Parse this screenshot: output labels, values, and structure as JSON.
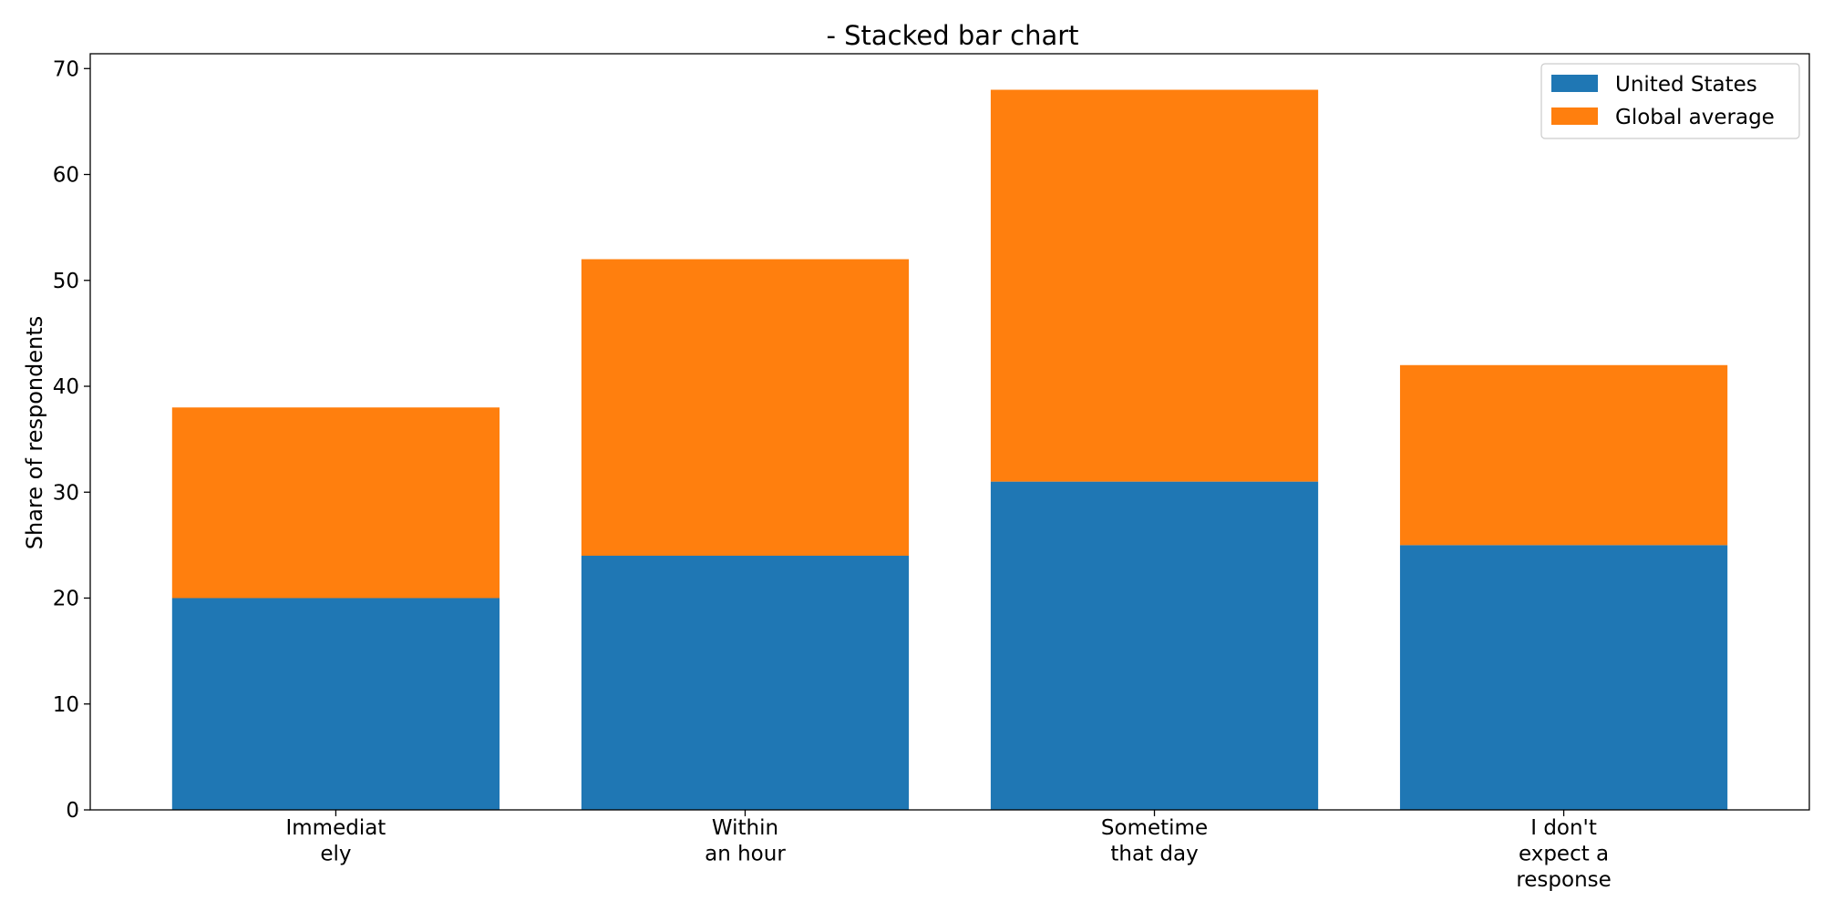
{
  "chart_data": {
    "type": "bar",
    "stacked": true,
    "title": "- Stacked bar chart",
    "xlabel": "",
    "ylabel": "Share of respondents",
    "categories": [
      [
        "Immediat",
        "ely"
      ],
      [
        "Within",
        "an hour"
      ],
      [
        "Sometime",
        "that day"
      ],
      [
        "I don't",
        "expect a",
        "response"
      ]
    ],
    "series": [
      {
        "name": "United States",
        "values": [
          20,
          24,
          31,
          25
        ],
        "color": "#1f77b4"
      },
      {
        "name": "Global average",
        "values": [
          18,
          28,
          37,
          17
        ],
        "color": "#ff7f0e"
      }
    ],
    "ylim": [
      0,
      71.4
    ],
    "yticks": [
      0,
      10,
      20,
      30,
      40,
      50,
      60,
      70
    ],
    "grid": false,
    "legend_position": "top-right"
  }
}
